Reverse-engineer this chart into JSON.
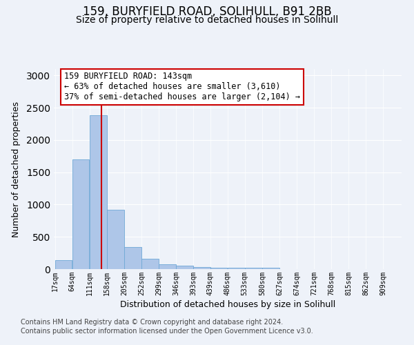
{
  "title1": "159, BURYFIELD ROAD, SOLIHULL, B91 2BB",
  "title2": "Size of property relative to detached houses in Solihull",
  "xlabel": "Distribution of detached houses by size in Solihull",
  "ylabel": "Number of detached properties",
  "bin_edges": [
    17,
    64,
    111,
    158,
    205,
    252,
    299,
    346,
    393,
    439,
    486,
    533,
    580,
    627,
    674,
    721,
    768,
    815,
    862,
    909,
    956
  ],
  "bar_heights": [
    140,
    1700,
    2380,
    920,
    340,
    160,
    80,
    50,
    30,
    20,
    20,
    20,
    20,
    0,
    0,
    0,
    0,
    0,
    0,
    0
  ],
  "bar_color": "#aec6e8",
  "bar_edgecolor": "#6fa8d6",
  "vline_x": 143,
  "vline_color": "#cc0000",
  "annotation_text": "159 BURYFIELD ROAD: 143sqm\n← 63% of detached houses are smaller (3,610)\n37% of semi-detached houses are larger (2,104) →",
  "annotation_box_edgecolor": "#cc0000",
  "annotation_box_facecolor": "#ffffff",
  "ylim": [
    0,
    3100
  ],
  "yticks": [
    0,
    500,
    1000,
    1500,
    2000,
    2500,
    3000
  ],
  "background_color": "#eef2f9",
  "footer_line1": "Contains HM Land Registry data © Crown copyright and database right 2024.",
  "footer_line2": "Contains public sector information licensed under the Open Government Licence v3.0.",
  "title1_fontsize": 12,
  "title2_fontsize": 10,
  "xlabel_fontsize": 9,
  "ylabel_fontsize": 9,
  "annotation_fontsize": 8.5,
  "footer_fontsize": 7,
  "tick_fontsize": 7
}
